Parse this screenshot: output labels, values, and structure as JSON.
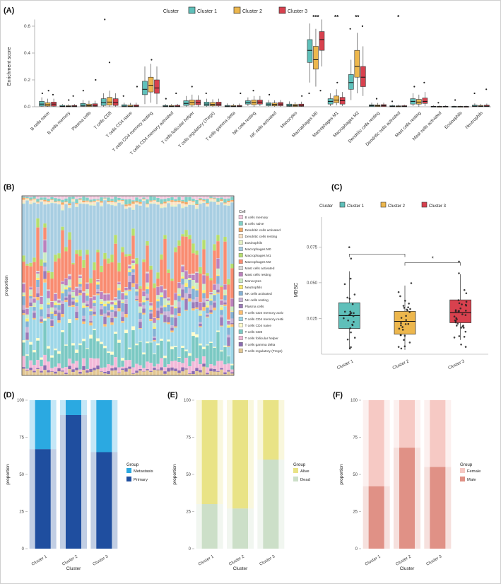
{
  "figure": {
    "panel_labels": {
      "a": "(A)",
      "b": "(B)",
      "c": "(C)",
      "d": "(D)",
      "e": "(E)",
      "f": "(F)"
    }
  },
  "chart_data": [
    {
      "panel": "A",
      "type": "boxplot",
      "legend_title": "Cluster",
      "series": [
        "Cluster 1",
        "Cluster 2",
        "Cluster 3"
      ],
      "series_colors": [
        "#5FC0BA",
        "#EDB74D",
        "#D8414E"
      ],
      "ylabel": "Enrichment score",
      "ylim": [
        0,
        0.7
      ],
      "yticks": [
        0,
        0.2,
        0.4,
        0.6
      ],
      "ytick_labels": [
        "0.0",
        "0.2",
        "0.4",
        "0.6"
      ],
      "categories": [
        "B cells naive",
        "B cells memory",
        "Plasma cells",
        "T cells CD8",
        "T cells CD4 naive",
        "T cells CD4 memory resting",
        "T cells CD4 memory activated",
        "T cells follicular helper",
        "T cells regulatory (Tregs)",
        "T cells gamma delta",
        "NK cells resting",
        "NK cells activated",
        "Monocytes",
        "Macrophages M0",
        "Macrophages M1",
        "Macrophages M2",
        "Dendritic cells resting",
        "Dendritic cells activated",
        "Mast cells resting",
        "Mast cells activated",
        "Eosinophils",
        "Neutrophils"
      ],
      "stats": [
        [
          [
            0,
            0.005,
            0.02,
            0.04,
            0.07
          ],
          [
            0,
            0.005,
            0.015,
            0.03,
            0.06
          ],
          [
            0,
            0.005,
            0.02,
            0.035,
            0.06
          ]
        ],
        [
          [
            0,
            0,
            0.003,
            0.01,
            0.02
          ],
          [
            0,
            0,
            0.003,
            0.008,
            0.018
          ],
          [
            0,
            0,
            0.004,
            0.01,
            0.02
          ]
        ],
        [
          [
            0,
            0.003,
            0.01,
            0.025,
            0.05
          ],
          [
            0,
            0.002,
            0.008,
            0.02,
            0.045
          ],
          [
            0,
            0.003,
            0.01,
            0.022,
            0.045
          ]
        ],
        [
          [
            0,
            0.01,
            0.03,
            0.06,
            0.1
          ],
          [
            0,
            0.012,
            0.035,
            0.07,
            0.12
          ],
          [
            0,
            0.01,
            0.03,
            0.06,
            0.1
          ]
        ],
        [
          [
            0,
            0,
            0.005,
            0.015,
            0.03
          ],
          [
            0,
            0,
            0.004,
            0.012,
            0.028
          ],
          [
            0,
            0,
            0.005,
            0.014,
            0.03
          ]
        ],
        [
          [
            0.02,
            0.09,
            0.13,
            0.19,
            0.3
          ],
          [
            0.03,
            0.11,
            0.16,
            0.22,
            0.32
          ],
          [
            0.02,
            0.1,
            0.14,
            0.2,
            0.3
          ]
        ],
        [
          [
            0,
            0,
            0.004,
            0.01,
            0.02
          ],
          [
            0,
            0,
            0.003,
            0.009,
            0.02
          ],
          [
            0,
            0,
            0.004,
            0.011,
            0.022
          ]
        ],
        [
          [
            0,
            0.01,
            0.025,
            0.045,
            0.08
          ],
          [
            0,
            0.012,
            0.03,
            0.05,
            0.09
          ],
          [
            0,
            0.015,
            0.03,
            0.05,
            0.085
          ]
        ],
        [
          [
            0,
            0.008,
            0.02,
            0.035,
            0.06
          ],
          [
            0,
            0.007,
            0.018,
            0.032,
            0.055
          ],
          [
            0,
            0.008,
            0.02,
            0.035,
            0.06
          ]
        ],
        [
          [
            0,
            0,
            0.004,
            0.01,
            0.025
          ],
          [
            0,
            0,
            0.003,
            0.009,
            0.022
          ],
          [
            0,
            0,
            0.004,
            0.01,
            0.024
          ]
        ],
        [
          [
            0.005,
            0.02,
            0.03,
            0.045,
            0.07
          ],
          [
            0,
            0.015,
            0.03,
            0.05,
            0.08
          ],
          [
            0.005,
            0.02,
            0.035,
            0.05,
            0.08
          ]
        ],
        [
          [
            0,
            0.008,
            0.02,
            0.03,
            0.05
          ],
          [
            0,
            0.007,
            0.018,
            0.028,
            0.048
          ],
          [
            0,
            0.008,
            0.02,
            0.032,
            0.05
          ]
        ],
        [
          [
            0,
            0.003,
            0.01,
            0.02,
            0.04
          ],
          [
            0,
            0.002,
            0.008,
            0.018,
            0.035
          ],
          [
            0,
            0.003,
            0.01,
            0.02,
            0.038
          ]
        ],
        [
          [
            0.18,
            0.33,
            0.42,
            0.5,
            0.62
          ],
          [
            0.15,
            0.28,
            0.35,
            0.45,
            0.58
          ],
          [
            0.3,
            0.42,
            0.5,
            0.56,
            0.65
          ]
        ],
        [
          [
            0.005,
            0.02,
            0.04,
            0.06,
            0.1
          ],
          [
            0.01,
            0.03,
            0.05,
            0.08,
            0.13
          ],
          [
            0.005,
            0.02,
            0.045,
            0.07,
            0.11
          ]
        ],
        [
          [
            0.05,
            0.13,
            0.18,
            0.24,
            0.35
          ],
          [
            0.1,
            0.22,
            0.3,
            0.42,
            0.55
          ],
          [
            0.08,
            0.15,
            0.22,
            0.3,
            0.45
          ]
        ],
        [
          [
            0,
            0.002,
            0.008,
            0.015,
            0.03
          ],
          [
            0,
            0.002,
            0.007,
            0.014,
            0.028
          ],
          [
            0,
            0.002,
            0.008,
            0.016,
            0.03
          ]
        ],
        [
          [
            0,
            0,
            0.003,
            0.008,
            0.015
          ],
          [
            0,
            0,
            0.002,
            0.007,
            0.014
          ],
          [
            0,
            0,
            0.003,
            0.008,
            0.016
          ]
        ],
        [
          [
            0.005,
            0.02,
            0.04,
            0.06,
            0.1
          ],
          [
            0,
            0.02,
            0.035,
            0.055,
            0.09
          ],
          [
            0.005,
            0.025,
            0.04,
            0.065,
            0.11
          ]
        ],
        [
          [
            0,
            0,
            0.001,
            0.004,
            0.01
          ],
          [
            0,
            0,
            0.001,
            0.003,
            0.009
          ],
          [
            0,
            0,
            0.001,
            0.004,
            0.01
          ]
        ],
        [
          [
            0,
            0,
            0.001,
            0.003,
            0.008
          ],
          [
            0,
            0,
            0.001,
            0.003,
            0.007
          ],
          [
            0,
            0,
            0.001,
            0.003,
            0.008
          ]
        ],
        [
          [
            0,
            0.001,
            0.005,
            0.012,
            0.025
          ],
          [
            0,
            0.001,
            0.004,
            0.01,
            0.022
          ],
          [
            0,
            0.001,
            0.005,
            0.012,
            0.024
          ]
        ]
      ],
      "outliers": [
        [
          0,
          0,
          0.1
        ],
        [
          0,
          1,
          0.12
        ],
        [
          0,
          2,
          0.09
        ],
        [
          1,
          1,
          0.05
        ],
        [
          1,
          2,
          0.08
        ],
        [
          2,
          0,
          0.12
        ],
        [
          2,
          2,
          0.2
        ],
        [
          3,
          1,
          0.33
        ],
        [
          3,
          0,
          0.65
        ],
        [
          4,
          0,
          0.08
        ],
        [
          4,
          2,
          0.15
        ],
        [
          5,
          1,
          0.35
        ],
        [
          6,
          0,
          0.06
        ],
        [
          6,
          2,
          0.1
        ],
        [
          7,
          1,
          0.15
        ],
        [
          8,
          0,
          0.1
        ],
        [
          9,
          2,
          0.1
        ],
        [
          10,
          1,
          0.12
        ],
        [
          11,
          0,
          0.09
        ],
        [
          12,
          2,
          0.08
        ],
        [
          13,
          0,
          0.1
        ],
        [
          13,
          2,
          0.12
        ],
        [
          14,
          1,
          0.18
        ],
        [
          15,
          0,
          0.58
        ],
        [
          15,
          2,
          0.6
        ],
        [
          16,
          1,
          0.06
        ],
        [
          17,
          0,
          0.04
        ],
        [
          18,
          0,
          0.15
        ],
        [
          18,
          2,
          0.18
        ],
        [
          19,
          1,
          0.03
        ],
        [
          20,
          0,
          0.05
        ],
        [
          21,
          2,
          0.13
        ],
        [
          21,
          0,
          0.1
        ]
      ],
      "significance": [
        {
          "category_index": 13,
          "label": "***"
        },
        {
          "category_index": 14,
          "label": "**"
        },
        {
          "category_index": 15,
          "label": "**"
        },
        {
          "category_index": 17,
          "label": "*"
        }
      ]
    },
    {
      "panel": "B",
      "type": "stacked-bar-samples",
      "ylabel": "proportion",
      "legend_title": "Cell",
      "n_samples": 60,
      "seed": 7,
      "cell_types": [
        {
          "name": "B cells memory",
          "color": "#F5CBE1",
          "mean": 0.012
        },
        {
          "name": "B cells naive",
          "color": "#7FD0C6",
          "mean": 0.015
        },
        {
          "name": "Dendritic cells activated",
          "color": "#F2A967",
          "mean": 0.006
        },
        {
          "name": "Dendritic cells resting",
          "color": "#FBE3C5",
          "mean": 0.01
        },
        {
          "name": "Eosinophils",
          "color": "#E4F0C3",
          "mean": 0.005
        },
        {
          "name": "Macrophages M0",
          "color": "#A8CEE2",
          "mean": 0.28
        },
        {
          "name": "Macrophages M1",
          "color": "#B5DE6E",
          "mean": 0.03
        },
        {
          "name": "Macrophages M2",
          "color": "#F98C71",
          "mean": 0.16
        },
        {
          "name": "Mast cells activated",
          "color": "#DCDCDC",
          "mean": 0.005
        },
        {
          "name": "Mast cells resting",
          "color": "#BB81BD",
          "mean": 0.03
        },
        {
          "name": "Monocytes",
          "color": "#CBEBC4",
          "mean": 0.02
        },
        {
          "name": "Neutrophils",
          "color": "#FFEC6E",
          "mean": 0.01
        },
        {
          "name": "NK cells activated",
          "color": "#84B1D5",
          "mean": 0.03
        },
        {
          "name": "NK cells resting",
          "color": "#C9B3D7",
          "mean": 0.02
        },
        {
          "name": "Plasma cells",
          "color": "#9B7BB8",
          "mean": 0.03
        },
        {
          "name": "T cells CD4 memory activated",
          "color": "#FDBF70",
          "mean": 0.01
        },
        {
          "name": "T cells CD4 memory resting",
          "color": "#9ED7E8",
          "mean": 0.17
        },
        {
          "name": "T cells CD4 naive",
          "color": "#FFFDCB",
          "mean": 0.01
        },
        {
          "name": "T cells CD8",
          "color": "#7BC9C3",
          "mean": 0.09
        },
        {
          "name": "T cells follicular helper",
          "color": "#F2B8D8",
          "mean": 0.03
        },
        {
          "name": "T cells gamma delta",
          "color": "#8A6BB0",
          "mean": 0.012
        },
        {
          "name": "T cells regulatory (Tregs)",
          "color": "#E2C692",
          "mean": 0.02
        }
      ]
    },
    {
      "panel": "C",
      "type": "boxplot-jitter",
      "legend_title": "Cluster",
      "ylabel": "MDSC",
      "ylim": [
        0,
        0.09
      ],
      "yticks": [
        0.025,
        0.05,
        0.075
      ],
      "ytick_labels": [
        "0.025",
        "0.050",
        "0.075"
      ],
      "categories": [
        "Cluster 1",
        "Cluster 2",
        "Cluster 3"
      ],
      "series_colors": [
        "#5FC0BA",
        "#EDB74D",
        "#D8414E"
      ],
      "stats": [
        [
          0.004,
          0.018,
          0.027,
          0.036,
          0.058
        ],
        [
          0.003,
          0.014,
          0.023,
          0.03,
          0.048
        ],
        [
          0.01,
          0.022,
          0.029,
          0.038,
          0.056
        ]
      ],
      "point_counts": [
        26,
        30,
        36
      ],
      "seed": 11,
      "brackets": [
        {
          "from": 0,
          "to": 1,
          "y": 0.07,
          "label": ""
        },
        {
          "from": 1,
          "to": 2,
          "y": 0.064,
          "label": "*"
        }
      ]
    },
    {
      "panel": "D",
      "type": "stacked-bar",
      "categories": [
        "Cluster 1",
        "Cluster 2",
        "Cluster 3"
      ],
      "ylabel": "proportion",
      "xlabel": "Cluster",
      "yticks": [
        0,
        25,
        50,
        75,
        100
      ],
      "legend_title": "Group",
      "series": [
        {
          "name": "Metastasis",
          "color": "#2BA9E1",
          "values": [
            33,
            10,
            35
          ]
        },
        {
          "name": "Primary",
          "color": "#1F4E9F",
          "values": [
            67,
            90,
            65
          ]
        }
      ]
    },
    {
      "panel": "E",
      "type": "stacked-bar",
      "categories": [
        "Cluster 1",
        "Cluster 2",
        "Cluster 3"
      ],
      "ylabel": "proportion",
      "xlabel": "Cluster",
      "yticks": [
        0,
        25,
        50,
        75,
        100
      ],
      "legend_title": "Group",
      "series": [
        {
          "name": "Alive",
          "color": "#E9E386",
          "values": [
            70,
            73,
            40
          ]
        },
        {
          "name": "Dead",
          "color": "#CCDFC8",
          "values": [
            30,
            27,
            60
          ]
        }
      ]
    },
    {
      "panel": "F",
      "type": "stacked-bar",
      "categories": [
        "Cluster 1",
        "Cluster 2",
        "Cluster 3"
      ],
      "ylabel": "proportion",
      "xlabel": "Cluster",
      "yticks": [
        0,
        25,
        50,
        75,
        100
      ],
      "legend_title": "Group",
      "series": [
        {
          "name": "Female",
          "color": "#F6C9C4",
          "values": [
            58,
            32,
            45
          ]
        },
        {
          "name": "Male",
          "color": "#E09186",
          "values": [
            42,
            68,
            55
          ]
        }
      ]
    }
  ]
}
